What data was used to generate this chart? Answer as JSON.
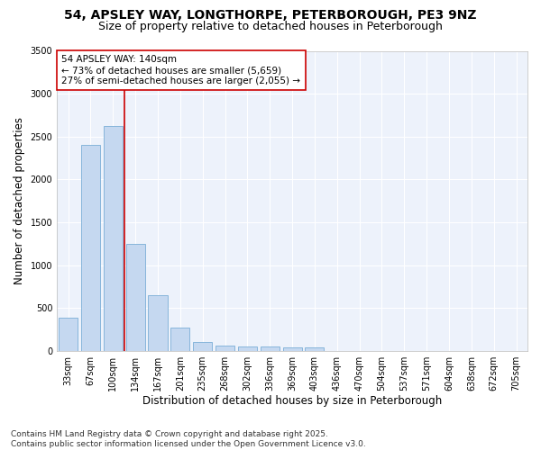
{
  "title_line1": "54, APSLEY WAY, LONGTHORPE, PETERBOROUGH, PE3 9NZ",
  "title_line2": "Size of property relative to detached houses in Peterborough",
  "xlabel": "Distribution of detached houses by size in Peterborough",
  "ylabel": "Number of detached properties",
  "categories": [
    "33sqm",
    "67sqm",
    "100sqm",
    "134sqm",
    "167sqm",
    "201sqm",
    "235sqm",
    "268sqm",
    "302sqm",
    "336sqm",
    "369sqm",
    "403sqm",
    "436sqm",
    "470sqm",
    "504sqm",
    "537sqm",
    "571sqm",
    "604sqm",
    "638sqm",
    "672sqm",
    "705sqm"
  ],
  "values": [
    390,
    2400,
    2620,
    1250,
    650,
    270,
    105,
    60,
    50,
    50,
    40,
    40,
    0,
    0,
    0,
    0,
    0,
    0,
    0,
    0,
    0
  ],
  "bar_color": "#c5d8f0",
  "bar_edge_color": "#7aaed6",
  "vline_color": "#cc0000",
  "vline_pos": 2.5,
  "annotation_text": "54 APSLEY WAY: 140sqm\n← 73% of detached houses are smaller (5,659)\n27% of semi-detached houses are larger (2,055) →",
  "annotation_box_facecolor": "#ffffff",
  "annotation_box_edgecolor": "#cc0000",
  "ylim": [
    0,
    3500
  ],
  "yticks": [
    0,
    500,
    1000,
    1500,
    2000,
    2500,
    3000,
    3500
  ],
  "bg_color": "#ffffff",
  "plot_bg_color": "#edf2fb",
  "grid_color": "#ffffff",
  "footer_line1": "Contains HM Land Registry data © Crown copyright and database right 2025.",
  "footer_line2": "Contains public sector information licensed under the Open Government Licence v3.0.",
  "title_fontsize": 10,
  "subtitle_fontsize": 9,
  "axis_label_fontsize": 8.5,
  "tick_fontsize": 7,
  "annotation_fontsize": 7.5,
  "footer_fontsize": 6.5
}
